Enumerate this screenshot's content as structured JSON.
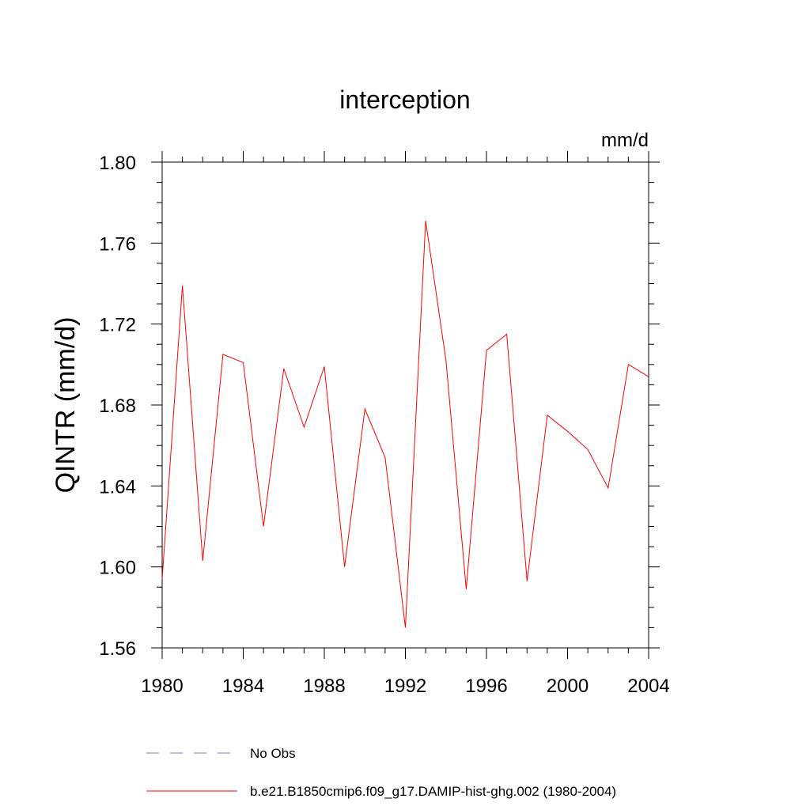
{
  "chart_data": {
    "type": "line",
    "title": "interception",
    "units_label": "mm/d",
    "ylabel": "QINTR  (mm/d)",
    "xlabel": "",
    "xlim": [
      1980,
      2004
    ],
    "ylim": [
      1.56,
      1.8
    ],
    "x_ticks": [
      1980,
      1984,
      1988,
      1992,
      1996,
      2000,
      2004
    ],
    "y_ticks": [
      "1.56",
      "1.60",
      "1.64",
      "1.68",
      "1.72",
      "1.76",
      "1.80"
    ],
    "x_minor_step": 1,
    "y_minor_step": 0.01,
    "grid": false,
    "legend_position": "bottom",
    "series": [
      {
        "name": "No Obs",
        "color": "#7b7bd6",
        "dash": "dashed",
        "x": [],
        "values": []
      },
      {
        "name": "b.e21.B1850cmip6.f09_g17.DAMIP-hist-ghg.002 (1980-2004)",
        "color": "#ff0000",
        "dash": "solid",
        "x": [
          1980,
          1981,
          1982,
          1983,
          1984,
          1985,
          1986,
          1987,
          1988,
          1989,
          1990,
          1991,
          1992,
          1993,
          1994,
          1995,
          1996,
          1997,
          1998,
          1999,
          2000,
          2001,
          2002,
          2003,
          2004
        ],
        "values": [
          1.594,
          1.739,
          1.603,
          1.705,
          1.701,
          1.62,
          1.698,
          1.669,
          1.699,
          1.6,
          1.678,
          1.654,
          1.57,
          1.771,
          1.702,
          1.589,
          1.707,
          1.715,
          1.593,
          1.675,
          1.667,
          1.658,
          1.639,
          1.7,
          1.694
        ]
      }
    ]
  }
}
